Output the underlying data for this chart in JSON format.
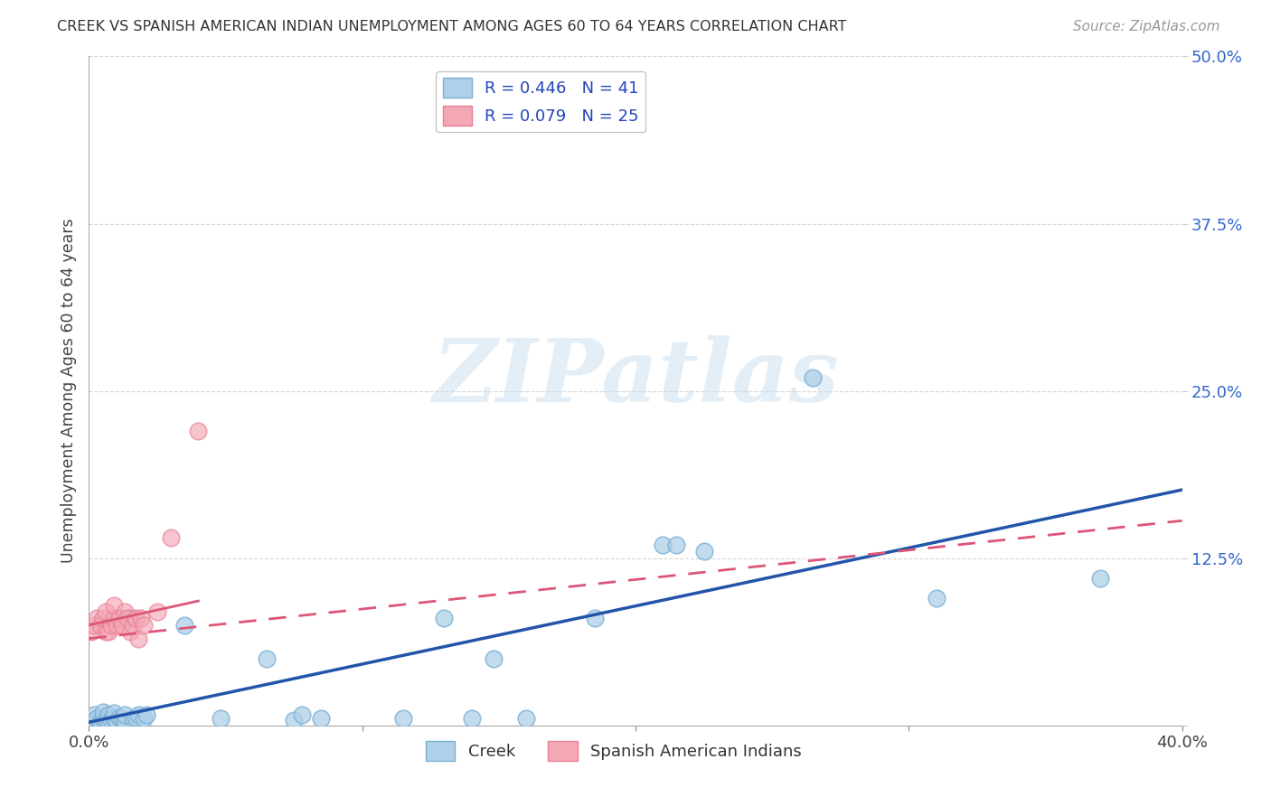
{
  "title": "CREEK VS SPANISH AMERICAN INDIAN UNEMPLOYMENT AMONG AGES 60 TO 64 YEARS CORRELATION CHART",
  "source": "Source: ZipAtlas.com",
  "ylabel": "Unemployment Among Ages 60 to 64 years",
  "xlim": [
    0.0,
    0.4
  ],
  "ylim": [
    0.0,
    0.5
  ],
  "xticks": [
    0.0,
    0.1,
    0.2,
    0.3,
    0.4
  ],
  "xticklabels": [
    "0.0%",
    "",
    "",
    "",
    "40.0%"
  ],
  "yticks": [
    0.0,
    0.125,
    0.25,
    0.375,
    0.5
  ],
  "yticklabels": [
    "",
    "12.5%",
    "25.0%",
    "37.5%",
    "50.0%"
  ],
  "creek_color": "#7BAFD4",
  "creek_color_fill": "#AED0E8",
  "sai_color_fill": "#F4A7B5",
  "sai_color_edge": "#E87F96",
  "creek_R": 0.446,
  "creek_N": 41,
  "sai_R": 0.079,
  "sai_N": 25,
  "creek_line_color": "#2255AA",
  "sai_line_color": "#DD5577",
  "watermark_text": "ZIPatlas",
  "creek_x": [
    0.002,
    0.002,
    0.003,
    0.004,
    0.005,
    0.005,
    0.006,
    0.007,
    0.007,
    0.008,
    0.009,
    0.009,
    0.01,
    0.011,
    0.012,
    0.013,
    0.013,
    0.015,
    0.016,
    0.017,
    0.018,
    0.02,
    0.021,
    0.035,
    0.048,
    0.065,
    0.075,
    0.078,
    0.085,
    0.115,
    0.13,
    0.14,
    0.148,
    0.16,
    0.185,
    0.21,
    0.215,
    0.225,
    0.265,
    0.31,
    0.37
  ],
  "creek_y": [
    0.003,
    0.008,
    0.005,
    0.003,
    0.005,
    0.01,
    0.004,
    0.003,
    0.008,
    0.004,
    0.005,
    0.009,
    0.003,
    0.006,
    0.005,
    0.003,
    0.008,
    0.08,
    0.005,
    0.006,
    0.008,
    0.005,
    0.008,
    0.075,
    0.005,
    0.05,
    0.004,
    0.008,
    0.005,
    0.005,
    0.08,
    0.005,
    0.05,
    0.005,
    0.08,
    0.135,
    0.135,
    0.13,
    0.26,
    0.095,
    0.11
  ],
  "sai_x": [
    0.001,
    0.002,
    0.003,
    0.004,
    0.005,
    0.006,
    0.006,
    0.007,
    0.008,
    0.009,
    0.009,
    0.01,
    0.011,
    0.012,
    0.013,
    0.014,
    0.015,
    0.016,
    0.017,
    0.018,
    0.019,
    0.02,
    0.025,
    0.03,
    0.04
  ],
  "sai_y": [
    0.07,
    0.075,
    0.08,
    0.075,
    0.08,
    0.07,
    0.085,
    0.07,
    0.075,
    0.08,
    0.09,
    0.075,
    0.08,
    0.075,
    0.085,
    0.08,
    0.07,
    0.075,
    0.08,
    0.065,
    0.08,
    0.075,
    0.085,
    0.14,
    0.22
  ]
}
